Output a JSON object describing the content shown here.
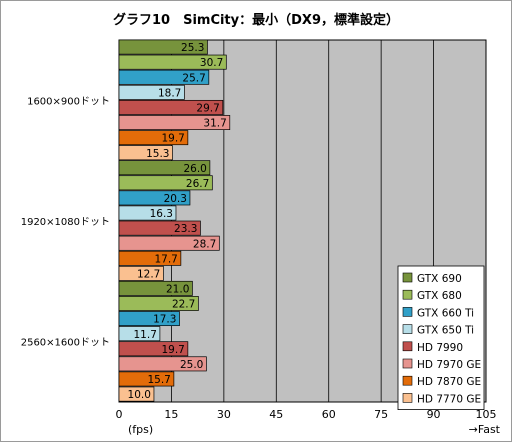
{
  "chart_data": {
    "type": "bar",
    "orientation": "horizontal",
    "title": "グラフ10　SimCity：最小（DX9，標準設定）",
    "xlabel_left": "(fps)",
    "xlabel_right": "→Fast",
    "xlim": [
      0,
      105
    ],
    "xticks": [
      "0",
      "15",
      "30",
      "45",
      "60",
      "75",
      "90",
      "105"
    ],
    "grid": true,
    "legend_position": "bottom-right",
    "categories": [
      "1600×900ドット",
      "1920×1080ドット",
      "2560×1600ドット"
    ],
    "series": [
      {
        "name": "GTX 690",
        "color": "#77933c",
        "values": [
          25.3,
          26.0,
          21.0
        ]
      },
      {
        "name": "GTX 680",
        "color": "#9bbb59",
        "values": [
          30.7,
          26.7,
          22.7
        ]
      },
      {
        "name": "GTX 660 Ti",
        "color": "#31a0c8",
        "values": [
          25.7,
          20.3,
          17.3
        ]
      },
      {
        "name": "GTX 650 Ti",
        "color": "#b7dee8",
        "values": [
          18.7,
          16.3,
          11.7
        ]
      },
      {
        "name": "HD 7990",
        "color": "#c0504d",
        "values": [
          29.7,
          23.3,
          19.7
        ]
      },
      {
        "name": "HD 7970 GE",
        "color": "#e6948f",
        "values": [
          31.7,
          28.7,
          25.0
        ]
      },
      {
        "name": "HD 7870 GE",
        "color": "#e36c09",
        "values": [
          19.7,
          17.7,
          15.7
        ]
      },
      {
        "name": "HD 7770 GE",
        "color": "#fac090",
        "values": [
          15.3,
          12.7,
          10.0
        ]
      }
    ]
  }
}
